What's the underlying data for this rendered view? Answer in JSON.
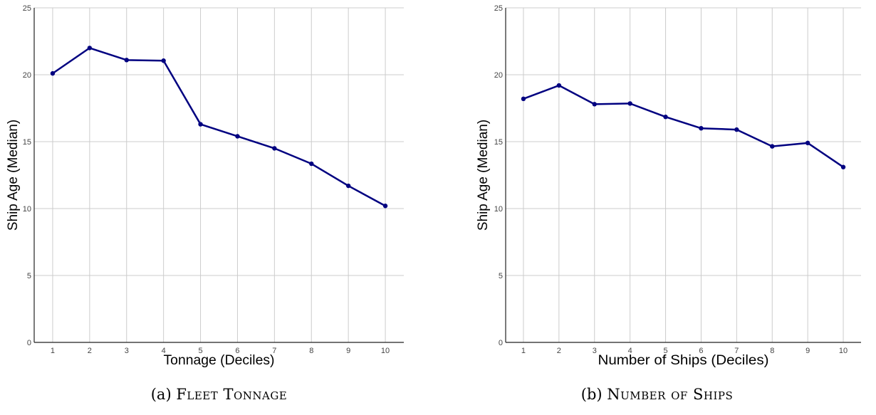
{
  "chart_data": [
    {
      "type": "line",
      "caption_prefix": "(a)",
      "caption_title": "Fleet Tonnage",
      "xlabel": "Tonnage (Deciles)",
      "ylabel": "Ship Age (Median)",
      "x": [
        1,
        2,
        3,
        4,
        5,
        6,
        7,
        8,
        9,
        10
      ],
      "series": [
        {
          "values": [
            20.1,
            22.0,
            21.1,
            21.05,
            16.3,
            15.4,
            14.5,
            13.35,
            11.7,
            10.2
          ]
        }
      ],
      "xlim": [
        0.5,
        10.5
      ],
      "ylim": [
        0,
        25
      ],
      "yticks": [
        0,
        5,
        10,
        15,
        20,
        25
      ],
      "grid": true,
      "color": "#000080"
    },
    {
      "type": "line",
      "caption_prefix": "(b)",
      "caption_title": "Number of Ships",
      "xlabel": "Number of Ships (Deciles)",
      "ylabel": "Ship Age (Median)",
      "x": [
        1,
        2,
        3,
        4,
        5,
        6,
        7,
        8,
        9,
        10
      ],
      "series": [
        {
          "values": [
            18.2,
            19.2,
            17.8,
            17.85,
            16.85,
            16.0,
            15.9,
            14.65,
            14.9,
            13.1
          ]
        }
      ],
      "xlim": [
        0.5,
        10.5
      ],
      "ylim": [
        0,
        25
      ],
      "yticks": [
        0,
        5,
        10,
        15,
        20,
        25
      ],
      "grid": true,
      "color": "#000080"
    }
  ]
}
